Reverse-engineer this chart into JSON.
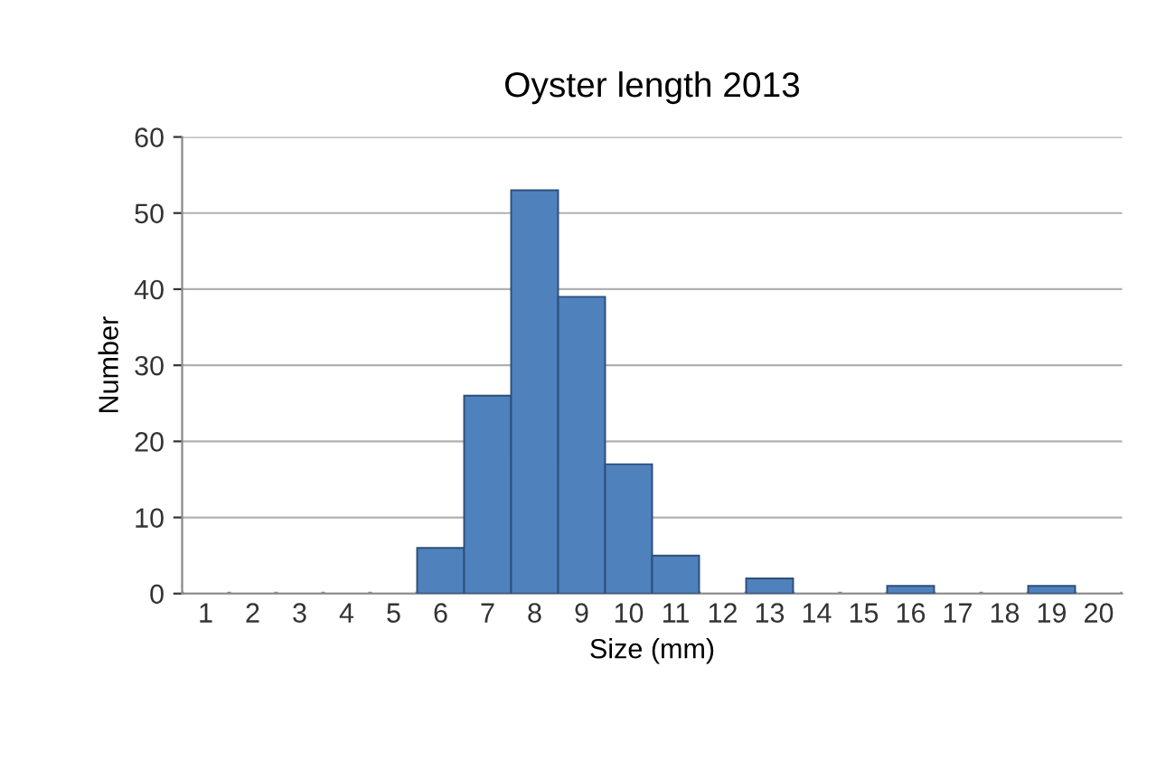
{
  "chart_data": {
    "type": "bar",
    "title": "Oyster length 2013",
    "xlabel": "Size (mm)",
    "ylabel": "Number",
    "categories": [
      "1",
      "2",
      "3",
      "4",
      "5",
      "6",
      "7",
      "8",
      "9",
      "10",
      "11",
      "12",
      "13",
      "14",
      "15",
      "16",
      "17",
      "18",
      "19",
      "20"
    ],
    "values": [
      0,
      0,
      0,
      0,
      0,
      6,
      26,
      53,
      39,
      17,
      5,
      0,
      2,
      0,
      0,
      1,
      0,
      0,
      1,
      0
    ],
    "color": "#4f81bd",
    "ylim": [
      0,
      60
    ],
    "yticks": [
      0,
      10,
      20,
      30,
      40,
      50,
      60
    ],
    "grid": "y"
  }
}
